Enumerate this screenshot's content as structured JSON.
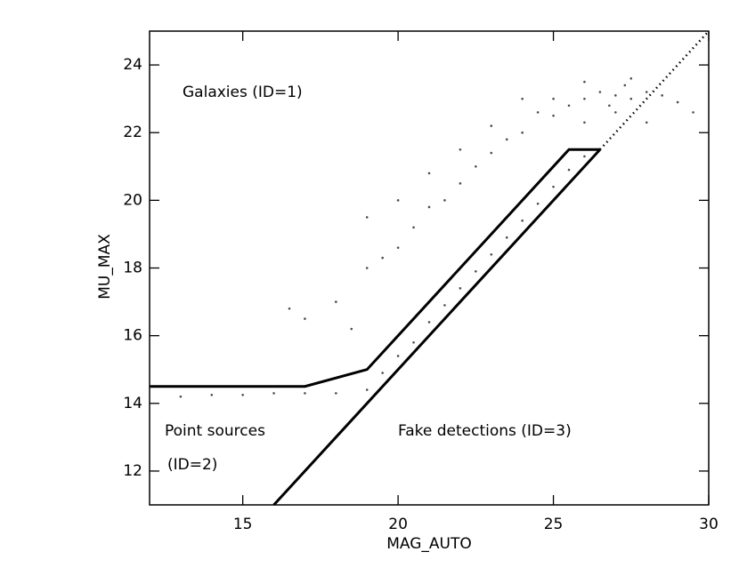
{
  "chart_data": {
    "type": "scatter",
    "x_label": "MAG_AUTO",
    "y_label": "MU_MAX",
    "xlim": [
      12,
      30
    ],
    "ylim": [
      11,
      25
    ],
    "xticks": [
      15,
      20,
      25,
      30
    ],
    "yticks": [
      12,
      14,
      16,
      18,
      20,
      22,
      24
    ],
    "annotations": [
      "Galaxies (ID=1)",
      "Point sources",
      "(ID=2)",
      "Fake detections (ID=3)"
    ],
    "series": [
      {
        "type": "scatter",
        "color": "#000000",
        "x": [
          26,
          26.5,
          27,
          27.5,
          28,
          26.8,
          27.3,
          25.5,
          25,
          24.5,
          26,
          27,
          28.5,
          24,
          23.5,
          25,
          26,
          27.5,
          23,
          22.5,
          22,
          21.5,
          21,
          20.5,
          20,
          19.5,
          22,
          21,
          23,
          24,
          29,
          29.5,
          28,
          20,
          19,
          18,
          19,
          17,
          18.5,
          16.5,
          13,
          14,
          15,
          16,
          17,
          18,
          19,
          19.5,
          20,
          20.5,
          21,
          21.5,
          22,
          22.5,
          23,
          23.5,
          24,
          24.5,
          25,
          25.5,
          26
        ],
        "y": [
          23,
          23.2,
          23.1,
          23,
          23.2,
          22.8,
          23.4,
          22.8,
          22.5,
          22.6,
          22.3,
          22.6,
          23.1,
          22,
          21.8,
          23,
          23.5,
          23.6,
          21.4,
          21,
          20.5,
          20,
          19.8,
          19.2,
          18.6,
          18.3,
          21.5,
          20.8,
          22.2,
          23,
          22.9,
          22.6,
          22.3,
          20,
          18,
          17,
          19.5,
          16.5,
          16.2,
          16.8,
          14.2,
          14.25,
          14.25,
          14.3,
          14.3,
          14.3,
          14.4,
          14.9,
          15.4,
          15.8,
          16.4,
          16.9,
          17.4,
          17.9,
          18.4,
          18.9,
          19.4,
          19.9,
          20.4,
          20.9,
          21.3
        ]
      },
      {
        "type": "line",
        "color": "#000000",
        "style": "solid",
        "x": [
          12,
          17,
          19,
          25.5,
          26.5
        ],
        "y": [
          14.5,
          14.5,
          15,
          21.5,
          21.5
        ]
      },
      {
        "type": "line",
        "color": "#000000",
        "style": "solid",
        "x": [
          16,
          26.5
        ],
        "y": [
          11,
          21.5
        ]
      },
      {
        "type": "line",
        "color": "#000000",
        "style": "dotted",
        "x": [
          26.5,
          30
        ],
        "y": [
          21.5,
          25
        ]
      }
    ]
  }
}
